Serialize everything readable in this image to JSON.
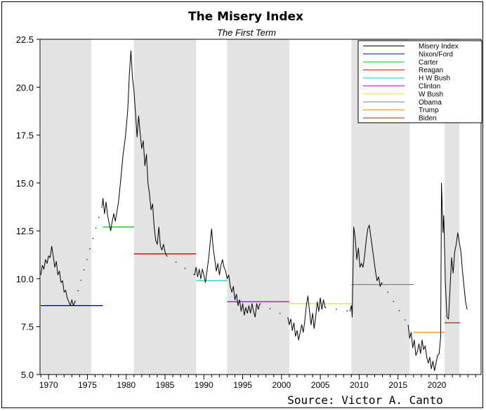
{
  "chart_data": {
    "type": "line",
    "title": "The Misery Index",
    "subtitle": "The First Term",
    "source": "Source: Victor A. Canto",
    "xlabel": "",
    "ylabel": "",
    "xlim": [
      1968.9,
      2025.7
    ],
    "ylim": [
      5.0,
      22.5
    ],
    "y_ticks": [
      "5.0",
      "7.5",
      "10.0",
      "12.5",
      "15.0",
      "17.5",
      "20.0",
      "22.5"
    ],
    "x_ticks": [
      "1970",
      "1975",
      "1980",
      "1985",
      "1990",
      "1995",
      "2000",
      "2005",
      "2010",
      "2015",
      "2020"
    ],
    "grid": false,
    "legend_position": "top-right",
    "shaded_terms": [
      [
        1969.0,
        1975.5
      ],
      [
        1981.0,
        1989.0
      ],
      [
        1993.0,
        2001.0
      ],
      [
        2009.0,
        2016.5
      ],
      [
        2021.0,
        2022.9
      ]
    ],
    "series": [
      {
        "name": "Misery Index",
        "color": "#000000",
        "segments": [
          [
            [
              1969.0,
              10.2
            ],
            [
              1969.2,
              10.7
            ],
            [
              1969.4,
              10.5
            ],
            [
              1969.6,
              11.0
            ],
            [
              1969.8,
              10.8
            ],
            [
              1970.0,
              11.2
            ],
            [
              1970.2,
              11.1
            ],
            [
              1970.4,
              11.7
            ],
            [
              1970.6,
              11.2
            ],
            [
              1970.8,
              10.6
            ],
            [
              1971.0,
              10.9
            ],
            [
              1971.2,
              10.2
            ],
            [
              1971.4,
              10.4
            ],
            [
              1971.6,
              9.8
            ],
            [
              1971.8,
              9.9
            ],
            [
              1972.0,
              9.3
            ],
            [
              1972.2,
              9.4
            ],
            [
              1972.4,
              9.0
            ],
            [
              1972.6,
              8.8
            ],
            [
              1972.8,
              8.6
            ],
            [
              1973.0,
              8.9
            ],
            [
              1973.2,
              8.6
            ],
            [
              1973.4,
              8.8
            ]
          ],
          [
            [
              1976.9,
              13.8
            ],
            [
              1977.0,
              14.2
            ],
            [
              1977.2,
              13.4
            ],
            [
              1977.4,
              14.0
            ],
            [
              1977.6,
              13.3
            ],
            [
              1977.8,
              12.9
            ],
            [
              1978.0,
              12.5
            ],
            [
              1978.2,
              13.0
            ],
            [
              1978.4,
              13.4
            ],
            [
              1978.6,
              13.0
            ],
            [
              1978.8,
              13.5
            ],
            [
              1979.0,
              14.0
            ],
            [
              1979.3,
              15.2
            ],
            [
              1979.6,
              16.5
            ],
            [
              1979.9,
              17.4
            ],
            [
              1980.2,
              18.8
            ],
            [
              1980.4,
              20.6
            ],
            [
              1980.6,
              21.9
            ],
            [
              1980.8,
              20.5
            ],
            [
              1981.0,
              19.8
            ],
            [
              1981.2,
              18.6
            ],
            [
              1981.4,
              17.4
            ],
            [
              1981.6,
              18.5
            ],
            [
              1981.8,
              17.6
            ],
            [
              1982.0,
              16.8
            ],
            [
              1982.2,
              17.2
            ],
            [
              1982.4,
              15.9
            ],
            [
              1982.6,
              16.5
            ],
            [
              1982.8,
              15.0
            ],
            [
              1983.0,
              14.4
            ],
            [
              1983.2,
              13.6
            ],
            [
              1983.4,
              13.9
            ],
            [
              1983.6,
              12.7
            ],
            [
              1983.8,
              12.0
            ],
            [
              1984.0,
              11.8
            ],
            [
              1984.2,
              12.7
            ],
            [
              1984.4,
              11.7
            ],
            [
              1984.6,
              11.5
            ],
            [
              1984.8,
              11.8
            ],
            [
              1985.0,
              11.4
            ],
            [
              1985.2,
              11.2
            ]
          ],
          [
            [
              1988.8,
              10.2
            ],
            [
              1989.0,
              10.6
            ],
            [
              1989.2,
              10.1
            ],
            [
              1989.4,
              10.5
            ],
            [
              1989.6,
              10.0
            ],
            [
              1989.8,
              10.5
            ],
            [
              1990.0,
              10.2
            ],
            [
              1990.2,
              9.8
            ],
            [
              1990.4,
              10.4
            ],
            [
              1990.6,
              11.0
            ],
            [
              1990.8,
              11.8
            ],
            [
              1991.0,
              12.6
            ],
            [
              1991.2,
              11.6
            ],
            [
              1991.4,
              11.0
            ],
            [
              1991.6,
              10.4
            ],
            [
              1991.8,
              10.8
            ],
            [
              1992.0,
              10.2
            ],
            [
              1992.2,
              10.7
            ],
            [
              1992.4,
              11.0
            ],
            [
              1992.6,
              10.6
            ],
            [
              1992.8,
              10.4
            ],
            [
              1993.0,
              10.0
            ],
            [
              1993.2,
              10.2
            ],
            [
              1993.4,
              9.6
            ],
            [
              1993.6,
              9.3
            ],
            [
              1993.8,
              9.6
            ],
            [
              1994.0,
              8.9
            ],
            [
              1994.2,
              9.2
            ],
            [
              1994.4,
              8.6
            ],
            [
              1994.6,
              8.9
            ],
            [
              1994.8,
              8.3
            ],
            [
              1995.0,
              8.7
            ],
            [
              1995.2,
              8.1
            ],
            [
              1995.4,
              8.5
            ],
            [
              1995.6,
              8.2
            ],
            [
              1995.8,
              8.6
            ],
            [
              1996.0,
              8.2
            ],
            [
              1996.2,
              8.7
            ],
            [
              1996.4,
              8.3
            ],
            [
              1996.6,
              8.0
            ],
            [
              1996.8,
              8.7
            ],
            [
              1997.0,
              8.4
            ],
            [
              1997.2,
              8.7
            ]
          ],
          [
            [
              2000.8,
              8.0
            ],
            [
              2001.0,
              7.6
            ],
            [
              2001.2,
              7.9
            ],
            [
              2001.4,
              7.3
            ],
            [
              2001.6,
              7.7
            ],
            [
              2001.8,
              7.0
            ],
            [
              2002.0,
              7.3
            ],
            [
              2002.2,
              6.8
            ],
            [
              2002.4,
              7.2
            ],
            [
              2002.6,
              7.6
            ],
            [
              2002.8,
              7.2
            ],
            [
              2003.0,
              7.8
            ],
            [
              2003.2,
              8.6
            ],
            [
              2003.4,
              9.1
            ],
            [
              2003.6,
              8.3
            ],
            [
              2003.8,
              7.6
            ],
            [
              2004.0,
              8.2
            ],
            [
              2004.2,
              7.4
            ],
            [
              2004.4,
              8.0
            ],
            [
              2004.6,
              8.8
            ],
            [
              2004.8,
              8.3
            ],
            [
              2005.0,
              9.0
            ],
            [
              2005.2,
              8.4
            ],
            [
              2005.4,
              8.9
            ],
            [
              2005.6,
              8.5
            ]
          ],
          [
            [
              2008.8,
              8.3
            ],
            [
              2009.0,
              8.6
            ],
            [
              2009.1,
              8.0
            ],
            [
              2009.3,
              12.7
            ],
            [
              2009.5,
              12.1
            ],
            [
              2009.7,
              11.0
            ],
            [
              2009.9,
              11.6
            ],
            [
              2010.1,
              10.6
            ],
            [
              2010.3,
              10.8
            ],
            [
              2010.5,
              10.6
            ],
            [
              2010.7,
              11.2
            ],
            [
              2010.9,
              12.0
            ],
            [
              2011.1,
              12.6
            ],
            [
              2011.3,
              12.8
            ],
            [
              2011.5,
              12.2
            ],
            [
              2011.7,
              11.6
            ],
            [
              2011.9,
              11.0
            ],
            [
              2012.1,
              10.4
            ],
            [
              2012.3,
              9.9
            ],
            [
              2012.5,
              10.1
            ],
            [
              2012.7,
              9.6
            ],
            [
              2012.9,
              9.8
            ]
          ],
          [
            [
              2016.3,
              7.6
            ],
            [
              2016.5,
              6.9
            ],
            [
              2016.7,
              7.2
            ],
            [
              2016.9,
              6.4
            ],
            [
              2017.1,
              6.8
            ],
            [
              2017.3,
              6.0
            ],
            [
              2017.5,
              6.2
            ],
            [
              2017.7,
              6.6
            ],
            [
              2017.9,
              6.1
            ],
            [
              2018.1,
              6.8
            ],
            [
              2018.3,
              6.3
            ],
            [
              2018.5,
              6.5
            ],
            [
              2018.7,
              5.9
            ],
            [
              2018.9,
              5.6
            ],
            [
              2019.1,
              5.9
            ],
            [
              2019.3,
              5.3
            ],
            [
              2019.5,
              5.7
            ],
            [
              2019.7,
              5.2
            ],
            [
              2019.9,
              5.6
            ],
            [
              2020.1,
              6.0
            ],
            [
              2020.3,
              6.1
            ],
            [
              2020.5,
              7.0
            ],
            [
              2020.6,
              15.0
            ],
            [
              2020.8,
              12.4
            ],
            [
              2020.9,
              13.3
            ],
            [
              2021.1,
              9.8
            ],
            [
              2021.3,
              8.0
            ],
            [
              2021.5,
              7.9
            ],
            [
              2021.7,
              9.5
            ],
            [
              2021.9,
              11.1
            ],
            [
              2022.1,
              10.3
            ],
            [
              2022.3,
              11.4
            ],
            [
              2022.5,
              11.8
            ],
            [
              2022.7,
              12.4
            ],
            [
              2022.9,
              11.9
            ],
            [
              2023.1,
              11.4
            ],
            [
              2023.3,
              10.4
            ],
            [
              2023.5,
              9.6
            ],
            [
              2023.7,
              8.8
            ],
            [
              2023.9,
              8.4
            ]
          ]
        ]
      },
      {
        "name": "Nixon/Ford",
        "color": "#0000cc",
        "x": [
          1969.0,
          1977.0
        ],
        "y": 8.6
      },
      {
        "name": "Carter",
        "color": "#00cc00",
        "x": [
          1977.0,
          1981.0
        ],
        "y": 12.7
      },
      {
        "name": "Reagan",
        "color": "#cc0000",
        "x": [
          1981.0,
          1989.0
        ],
        "y": 11.3
      },
      {
        "name": "H W Bush",
        "color": "#00cccc",
        "x": [
          1989.0,
          1993.0
        ],
        "y": 9.9
      },
      {
        "name": "Clinton",
        "color": "#cc00cc",
        "x": [
          1993.0,
          2001.0
        ],
        "y": 8.8
      },
      {
        "name": "W Bush",
        "color": "#e6e600",
        "x": [
          2001.0,
          2009.0
        ],
        "y": 8.7
      },
      {
        "name": "Obama",
        "color": "#808080",
        "x": [
          2009.0,
          2017.0
        ],
        "y": 9.7
      },
      {
        "name": "Trump",
        "color": "#ff8000",
        "x": [
          2017.0,
          2021.0
        ],
        "y": 7.2
      },
      {
        "name": "Biden",
        "color": "#993300",
        "x": [
          2021.0,
          2023.0
        ],
        "y": 7.7
      }
    ],
    "dotted_gaps": [
      [
        [
          1973.4,
          8.8
        ],
        [
          1976.9,
          13.8
        ]
      ],
      [
        [
          1985.2,
          11.2
        ],
        [
          1988.8,
          10.2
        ]
      ],
      [
        [
          1997.2,
          8.7
        ],
        [
          2000.8,
          8.0
        ]
      ],
      [
        [
          2005.6,
          8.5
        ],
        [
          2008.8,
          8.3
        ]
      ],
      [
        [
          2012.9,
          9.8
        ],
        [
          2016.3,
          7.6
        ]
      ]
    ]
  }
}
